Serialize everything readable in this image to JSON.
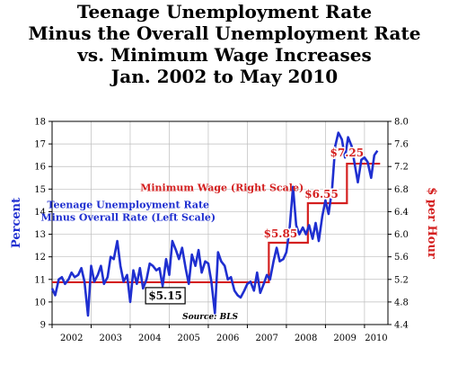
{
  "chart_data": {
    "type": "line",
    "title": [
      "Teenage Unemployment Rate",
      "Minus the Overall Unemployment Rate",
      "vs. Minimum Wage Increases",
      "Jan. 2002 to May 2010"
    ],
    "x_tick_labels": [
      "2002",
      "2003",
      "2004",
      "2005",
      "2006",
      "2007",
      "2008",
      "2009",
      "2010"
    ],
    "x_range": [
      2002.0,
      2010.6
    ],
    "y_left": {
      "label": "Percent",
      "range": [
        9,
        18
      ],
      "ticks": [
        "9",
        "10",
        "11",
        "12",
        "13",
        "14",
        "15",
        "16",
        "17",
        "18"
      ],
      "color": "#1f2fd0"
    },
    "y_right": {
      "label": "$ per Hour",
      "range": [
        4.4,
        8.0
      ],
      "ticks": [
        "4.4",
        "4.8",
        "5.2",
        "5.6",
        "6.0",
        "6.4",
        "6.8",
        "7.2",
        "7.6",
        "8.0"
      ],
      "color": "#d42020"
    },
    "grid": true,
    "series": [
      {
        "name": "Teenage Unemployment Rate Minus Overall Rate (Left Scale)",
        "axis": "left",
        "color": "#1f2fd0",
        "x": [
          2002.0,
          2002.08,
          2002.17,
          2002.25,
          2002.33,
          2002.42,
          2002.5,
          2002.58,
          2002.67,
          2002.75,
          2002.83,
          2002.92,
          2003.0,
          2003.08,
          2003.17,
          2003.25,
          2003.33,
          2003.42,
          2003.5,
          2003.58,
          2003.67,
          2003.75,
          2003.83,
          2003.92,
          2004.0,
          2004.08,
          2004.17,
          2004.25,
          2004.33,
          2004.42,
          2004.5,
          2004.58,
          2004.67,
          2004.75,
          2004.83,
          2004.92,
          2005.0,
          2005.08,
          2005.17,
          2005.25,
          2005.33,
          2005.42,
          2005.5,
          2005.58,
          2005.67,
          2005.75,
          2005.83,
          2005.92,
          2006.0,
          2006.08,
          2006.17,
          2006.25,
          2006.33,
          2006.42,
          2006.5,
          2006.58,
          2006.67,
          2006.75,
          2006.83,
          2006.92,
          2007.0,
          2007.08,
          2007.17,
          2007.25,
          2007.33,
          2007.42,
          2007.5,
          2007.58,
          2007.67,
          2007.75,
          2007.83,
          2007.92,
          2008.0,
          2008.08,
          2008.17,
          2008.25,
          2008.33,
          2008.42,
          2008.5,
          2008.58,
          2008.67,
          2008.75,
          2008.83,
          2008.92,
          2009.0,
          2009.08,
          2009.17,
          2009.25,
          2009.33,
          2009.42,
          2009.5,
          2009.58,
          2009.67,
          2009.75,
          2009.83,
          2009.92,
          2010.0,
          2010.08,
          2010.17,
          2010.25,
          2010.33
        ],
        "values": [
          10.6,
          10.3,
          11.0,
          11.1,
          10.8,
          11.0,
          11.3,
          11.1,
          11.2,
          11.5,
          10.9,
          9.4,
          11.6,
          10.9,
          11.2,
          11.6,
          10.8,
          11.1,
          12.0,
          11.9,
          12.7,
          11.6,
          10.9,
          11.2,
          10.0,
          11.4,
          10.8,
          11.5,
          10.6,
          11.0,
          11.7,
          11.6,
          11.4,
          11.5,
          10.7,
          11.9,
          11.2,
          12.7,
          12.3,
          11.9,
          12.4,
          11.5,
          10.8,
          12.1,
          11.6,
          12.3,
          11.3,
          11.8,
          11.7,
          10.9,
          9.5,
          12.2,
          11.8,
          11.6,
          11.0,
          11.1,
          10.5,
          10.3,
          10.2,
          10.5,
          10.8,
          10.9,
          10.5,
          11.3,
          10.4,
          10.8,
          11.2,
          11.0,
          11.8,
          12.4,
          11.8,
          11.9,
          12.2,
          13.2,
          15.1,
          13.4,
          13.0,
          13.3,
          13.0,
          13.4,
          12.8,
          13.5,
          12.7,
          13.8,
          14.5,
          13.9,
          15.0,
          16.9,
          17.5,
          17.2,
          16.4,
          17.3,
          16.9,
          16.1,
          15.3,
          16.3,
          16.4,
          16.2,
          15.5,
          16.5,
          16.7
        ],
        "label": "Teenage Unemployment Rate\nMinus Overall Rate (Left Scale)"
      },
      {
        "name": "Minimum Wage (Right Scale)",
        "axis": "right",
        "type": "step",
        "color": "#d42020",
        "x": [
          2002.0,
          2007.55,
          2008.55,
          2009.55,
          2010.4
        ],
        "values": [
          5.15,
          5.85,
          6.55,
          7.25,
          7.25
        ],
        "label": "Minimum Wage (Right Scale)"
      }
    ],
    "annotations": [
      "$5.15",
      "$5.85",
      "$6.55",
      "$7.25"
    ],
    "source": "Source: BLS"
  }
}
